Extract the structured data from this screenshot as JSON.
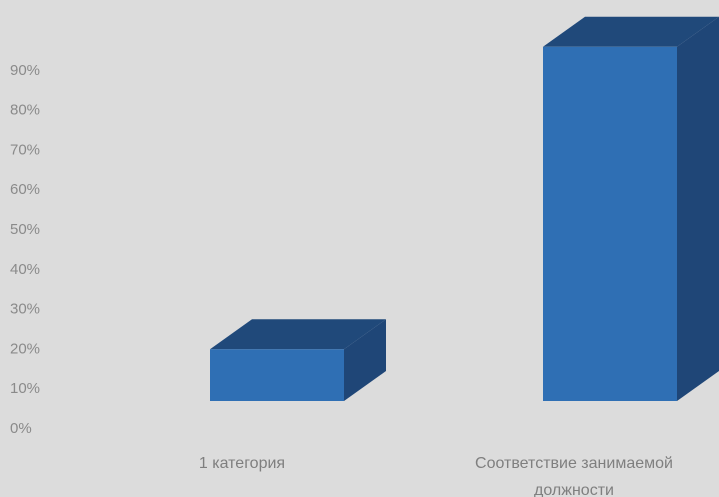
{
  "chart_data": {
    "type": "bar",
    "style": "3d-column",
    "categories": [
      [
        "1 категория"
      ],
      [
        "Соответствие занимаемой",
        "должности"
      ]
    ],
    "values": [
      0.13,
      0.89
    ],
    "ylim": [
      0,
      0.9
    ],
    "yticks": [
      "0%",
      "10%",
      "20%",
      "30%",
      "40%",
      "50%",
      "60%",
      "70%",
      "80%",
      "90%"
    ],
    "grid": false,
    "legend": "none",
    "colors": {
      "front": "#2f6fb4",
      "top": "#20497a",
      "side": "#1f4677",
      "background": "#dcdcdc",
      "text": "#8a8a8a"
    }
  }
}
